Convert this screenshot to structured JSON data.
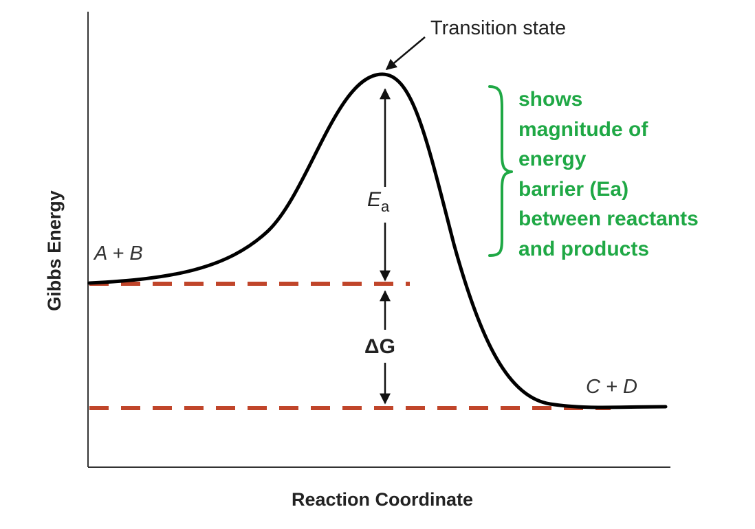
{
  "labels": {
    "y_axis": "Gibbs Energy",
    "x_axis": "Reaction Coordinate",
    "transition_state": "Transition state",
    "reactants": "A + B",
    "products": "C + D",
    "activation_energy_symbol": "E",
    "activation_energy_subscript": "a",
    "delta_g": "ΔG"
  },
  "annotation": {
    "lines": [
      "shows",
      "magnitude of",
      "energy",
      "barrier (Ea)",
      "between reactants",
      "and products"
    ]
  },
  "colors": {
    "curve": "#000000",
    "axes": "#333333",
    "energy_levels": "#c0452a",
    "annotation": "#1fa845"
  }
}
